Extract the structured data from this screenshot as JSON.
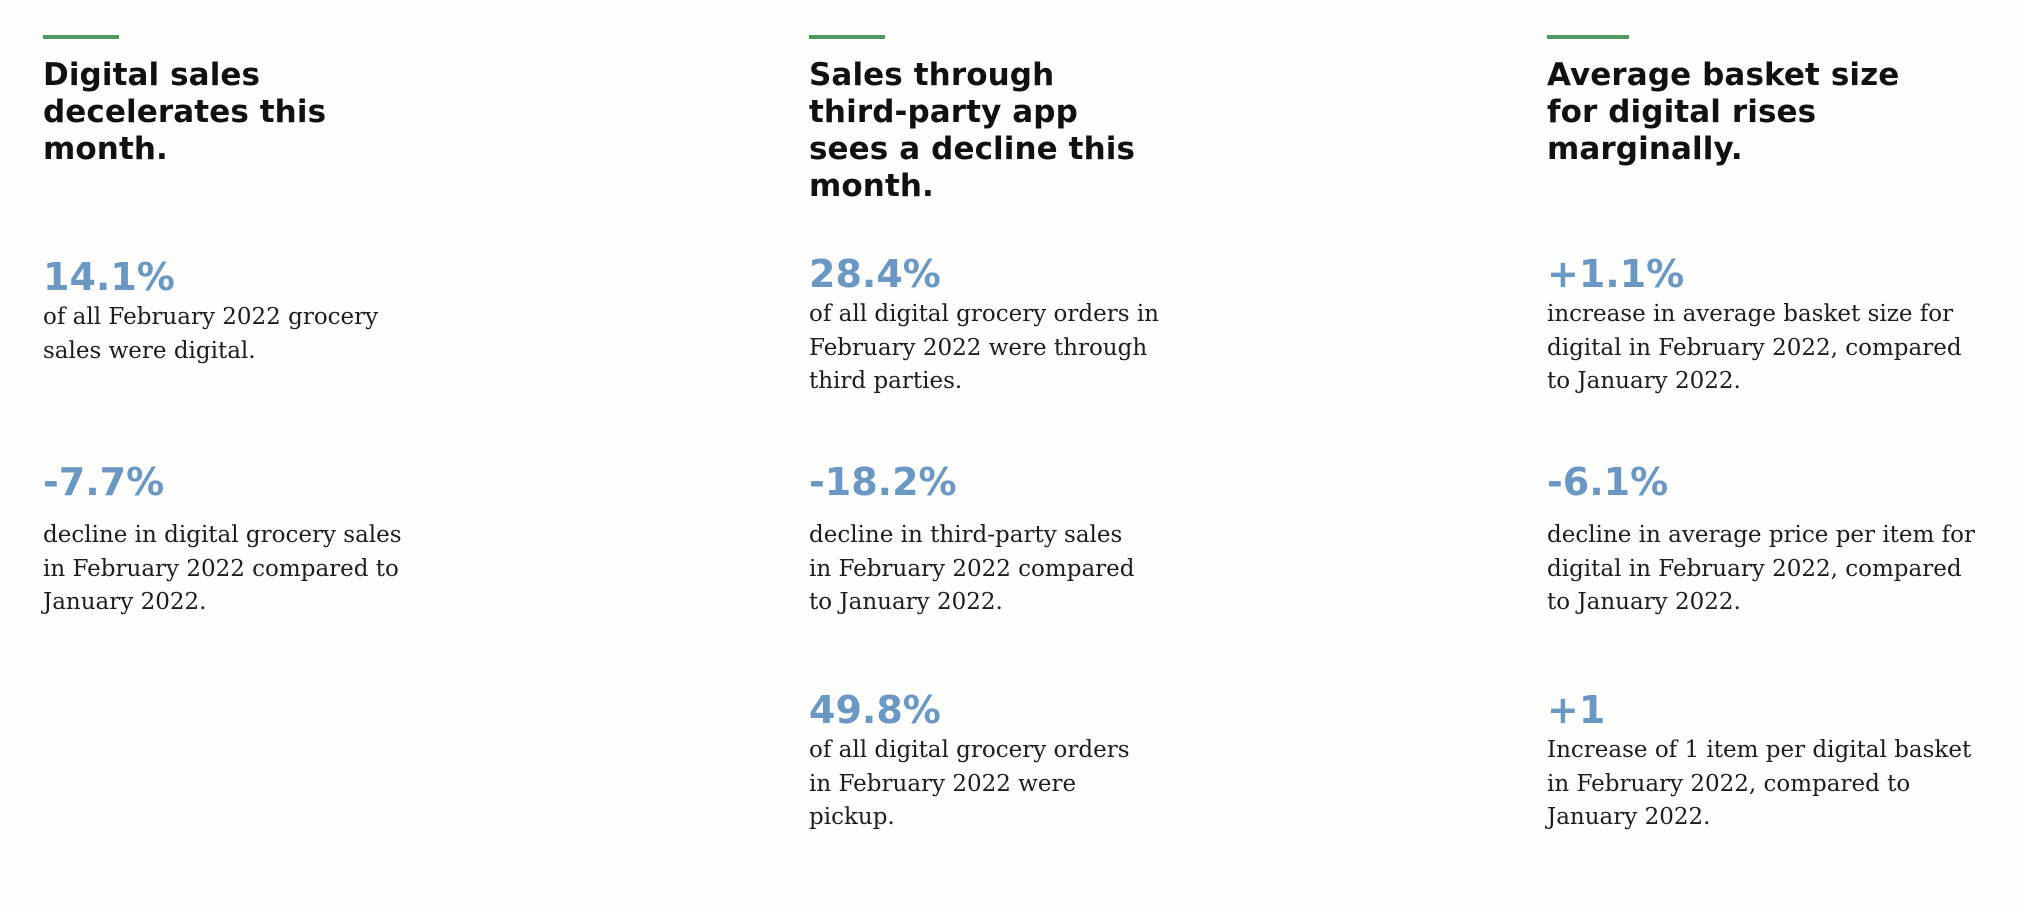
{
  "columns": [
    {
      "heading": "Digital sales decelerates this month.",
      "stats": [
        {
          "value": "14.1%",
          "description": "of all February 2022 grocery sales were digital."
        },
        {
          "value": "-7.7%",
          "description": "decline in digital grocery sales in February 2022 compared to January 2022."
        }
      ]
    },
    {
      "heading": "Sales through third-party app sees a decline this month.",
      "stats": [
        {
          "value": "28.4%",
          "description": "of all digital grocery orders in February 2022 were through third parties."
        },
        {
          "value": "-18.2%",
          "description": "decline in third-party sales in February 2022 compared to January 2022."
        },
        {
          "value": "49.8%",
          "description": "of all digital grocery orders in February 2022 were pickup."
        }
      ]
    },
    {
      "heading": "Average basket size for digital rises marginally.",
      "stats": [
        {
          "value": "+1.1%",
          "description": "increase in average basket size for digital in February 2022, compared to January 2022."
        },
        {
          "value": "-6.1%",
          "description": "decline in average price per item for digital in February 2022, compared to January 2022."
        },
        {
          "value": "+1",
          "description": "Increase of 1 item per digital basket in February 2022, compared to January 2022."
        }
      ]
    }
  ],
  "colors": {
    "accent_rule": "#4f9a5e",
    "stat_value": "#6b97c3",
    "heading_text": "#111111",
    "body_text": "#1d1d1d",
    "background": "#fdfdfc"
  }
}
